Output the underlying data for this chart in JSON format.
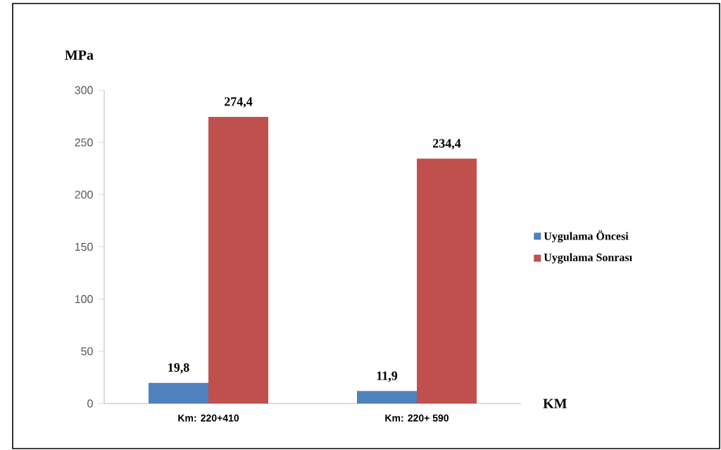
{
  "chart_data": {
    "type": "bar",
    "xlabel": "KM",
    "ylabel": "MPa",
    "categories": [
      "Km: 220+410",
      "Km: 220+ 590"
    ],
    "series": [
      {
        "name": "Uygulama Öncesi",
        "color": "#4f81bd",
        "values": [
          19.8,
          11.9
        ],
        "value_labels": [
          "19,8",
          "11,9"
        ]
      },
      {
        "name": "Uygulama Sonrası",
        "color": "#c0504d",
        "values": [
          274.4,
          234.4
        ],
        "value_labels": [
          "274,4",
          "234,4"
        ]
      }
    ],
    "ylim": [
      0,
      300
    ],
    "yticks": [
      0,
      50,
      100,
      150,
      200,
      250,
      300
    ],
    "legend": "right"
  }
}
